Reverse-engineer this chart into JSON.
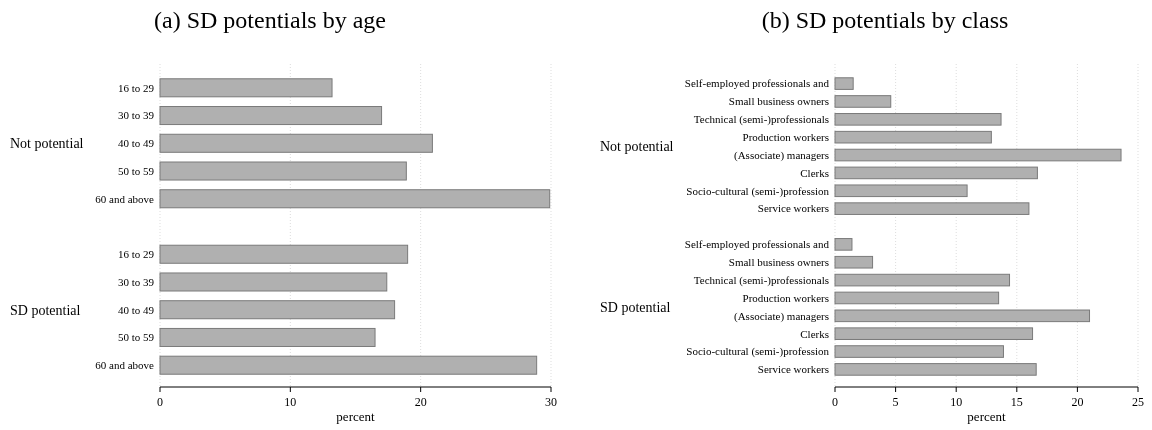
{
  "chart_data": [
    {
      "type": "bar",
      "orientation": "horizontal",
      "title": "(a) SD potentials by age",
      "xlabel": "percent",
      "categories": [
        "16 to 29",
        "30 to 39",
        "40 to 49",
        "50 to 59",
        "60 and above",
        null,
        "16 to 29",
        "30 to 39",
        "40 to 49",
        "50 to 59",
        "60 and above"
      ],
      "values": [
        13.2,
        17.0,
        20.9,
        18.9,
        29.9,
        null,
        19.0,
        17.4,
        18.0,
        16.5,
        28.9
      ],
      "color": "#b0b0b0",
      "xlim": [
        0,
        30
      ],
      "xticks": [
        0,
        10,
        20,
        30
      ],
      "grid": "x",
      "annotations": [
        "Not potential",
        "SD potential"
      ]
    },
    {
      "type": "bar",
      "orientation": "horizontal",
      "title": "(b) SD potentials by class",
      "xlabel": "percent",
      "categories": [
        "Self-employed professionals and",
        "Small business owners",
        "Technical (semi-)professionals",
        "Production workers",
        "(Associate) managers",
        "Clerks",
        "Socio-cultural (semi-)profession",
        "Service workers",
        null,
        "Self-employed professionals and",
        "Small business owners",
        "Technical (semi-)professionals",
        "Production workers",
        "(Associate) managers",
        "Clerks",
        "Socio-cultural (semi-)profession",
        "Service workers"
      ],
      "values": [
        1.5,
        4.6,
        13.7,
        12.9,
        23.6,
        16.7,
        10.9,
        16.0,
        null,
        1.4,
        3.1,
        14.4,
        13.5,
        21.0,
        16.3,
        13.9,
        16.6
      ],
      "color": "#b0b0b0",
      "xlim": [
        0,
        25
      ],
      "xticks": [
        0,
        5,
        10,
        15,
        20,
        25
      ],
      "grid": "x",
      "annotations": [
        "Not potential",
        "SD potential"
      ]
    }
  ]
}
